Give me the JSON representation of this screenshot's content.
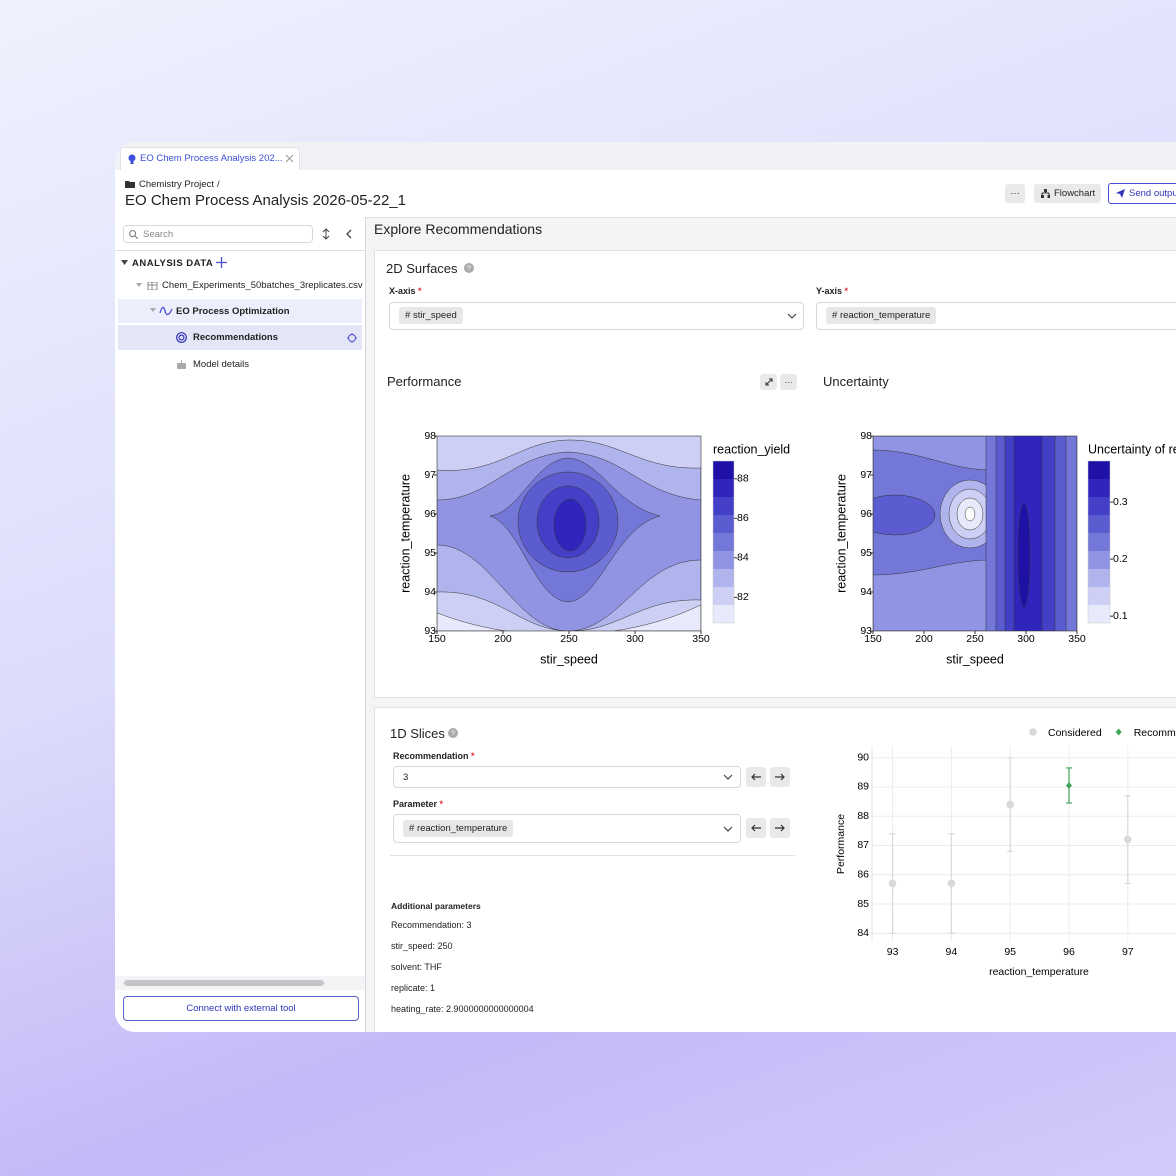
{
  "tab": {
    "title": "EO Chem Process Analysis 202..."
  },
  "header": {
    "breadcrumb": "Chemistry Project",
    "separator": "/",
    "title": "EO Chem Process Analysis 2026-05-22_1",
    "buttons": [
      "···",
      "Flowchart",
      "Send outpu"
    ]
  },
  "sidebar": {
    "search_placeholder": "Search",
    "section": "ANALYSIS DATA",
    "items": [
      "Chem_Experiments_50batches_3replicates.csv",
      "EO Process Optimization",
      "Recommendations",
      "Model details"
    ],
    "button": "Connect with external tool"
  },
  "main": {
    "title": "Explore Recommendations"
  },
  "surfaces": {
    "title": "2D Surfaces",
    "x_axis": {
      "label": "X-axis",
      "required": "*",
      "value": "stir_speed"
    },
    "y_axis": {
      "label": "Y-axis",
      "required": "*",
      "value": "reaction_temperature"
    }
  },
  "chart_data": [
    {
      "type": "contour",
      "title": "Performance",
      "x_label": "stir_speed",
      "y_label": "reaction_temperature",
      "xlim": [
        150,
        350
      ],
      "xticks": [
        150,
        200,
        250,
        300,
        350
      ],
      "ylim": [
        93,
        98
      ],
      "yticks": [
        93,
        94,
        95,
        96,
        97,
        98
      ],
      "colorbar": {
        "title": "reaction_yield",
        "clim": [
          80.7,
          88.9
        ],
        "ticks": [
          82,
          84,
          86,
          88
        ]
      }
    },
    {
      "type": "contour",
      "title": "Uncertainty",
      "x_label": "stir_speed",
      "y_label": "reaction_temperature",
      "xlim": [
        150,
        350
      ],
      "xticks": [
        150,
        200,
        250,
        300,
        350
      ],
      "ylim": [
        93,
        98
      ],
      "yticks": [
        93,
        94,
        95,
        96,
        97,
        98
      ],
      "colorbar": {
        "title": "Uncertainty of re",
        "clim": [
          0.088,
          0.372
        ],
        "ticks": [
          0.1,
          0.2,
          0.3
        ]
      }
    },
    {
      "type": "scatter",
      "y_label": "Performance",
      "x_label": "reaction_temperature",
      "xlim": [
        92.65,
        97.82
      ],
      "xticks": [
        93,
        94,
        95,
        96,
        97
      ],
      "ylim": [
        83.7,
        90.4
      ],
      "yticks": [
        84,
        85,
        86,
        87,
        88,
        89,
        90
      ],
      "grid": true,
      "series": [
        {
          "name": "Considered",
          "color": "#d9d9dc",
          "marker": "circle",
          "x": [
            93,
            94,
            95,
            97
          ],
          "values": [
            85.7,
            85.7,
            88.4,
            87.2
          ],
          "errors": [
            1.7,
            1.7,
            1.6,
            1.5
          ]
        },
        {
          "name": "Recomme",
          "color": "#3ea55a",
          "marker": "diamond",
          "x": [
            96
          ],
          "values": [
            89.05
          ],
          "errors": [
            0.6
          ]
        }
      ]
    }
  ],
  "slices": {
    "title": "1D Slices",
    "recommendation": {
      "label": "Recommendation",
      "required": "*",
      "value": "3"
    },
    "parameter": {
      "label": "Parameter",
      "required": "*",
      "value": "reaction_temperature"
    },
    "additional": {
      "title": "Additional parameters",
      "lines": [
        "Recommendation: 3",
        "stir_speed: 250",
        "solvent: THF",
        "replicate: 1",
        "heating_rate: 2.9000000000000004"
      ]
    }
  }
}
